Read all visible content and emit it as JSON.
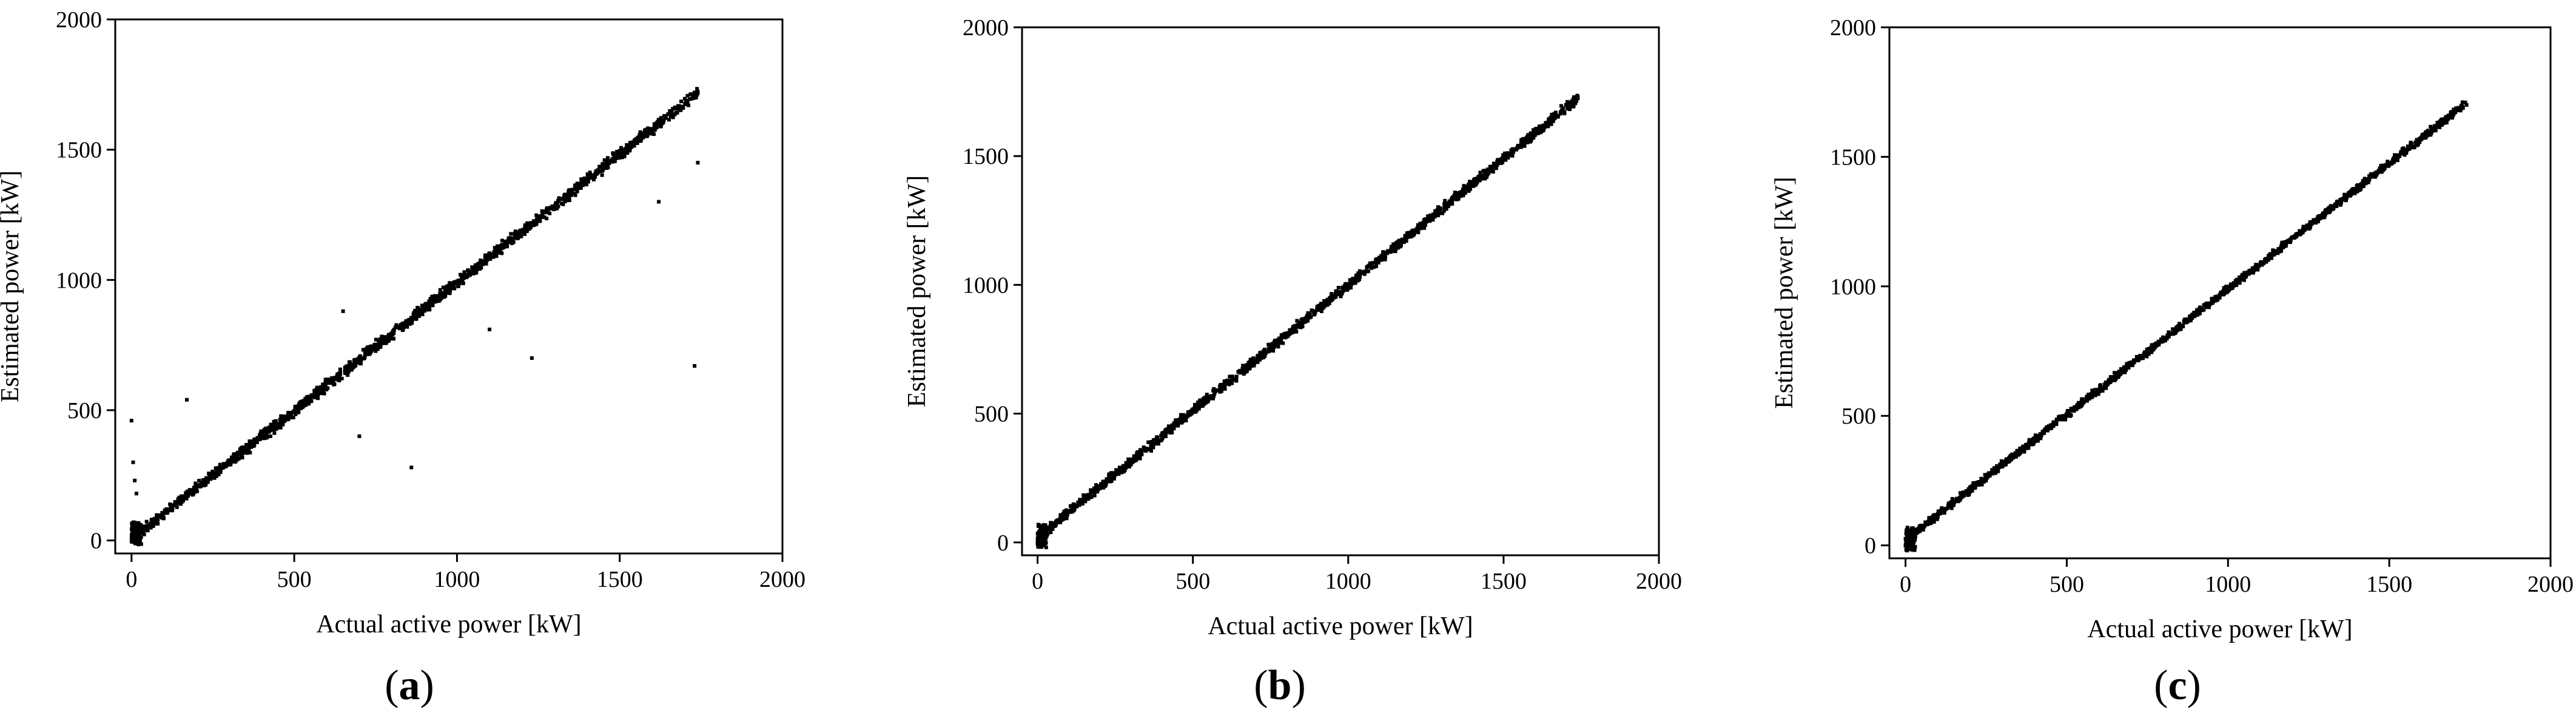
{
  "chart_data": [
    {
      "type": "scatter",
      "panel_label": "a",
      "xlabel": "Actual active power [kW]",
      "ylabel": "Estimated power [kW]",
      "xlim": [
        -50,
        2000
      ],
      "ylim": [
        -50,
        2000
      ],
      "xticks": [
        0,
        500,
        1000,
        1500,
        2000
      ],
      "yticks": [
        0,
        500,
        1000,
        1500,
        2000
      ],
      "x_tick_labels": [
        "0",
        "500",
        "1000",
        "1500",
        "2000"
      ],
      "y_tick_labels": [
        "0",
        "500",
        "1000",
        "1500",
        "2000"
      ],
      "grid": false,
      "point_color": "#000000",
      "trend": {
        "x_range": [
          0,
          1740
        ],
        "slope": 0.985,
        "intercept": 5,
        "spread": 30
      },
      "outliers": [
        {
          "x": 0,
          "y": 460
        },
        {
          "x": 5,
          "y": 300
        },
        {
          "x": 10,
          "y": 230
        },
        {
          "x": 15,
          "y": 180
        },
        {
          "x": 170,
          "y": 540
        },
        {
          "x": 650,
          "y": 880
        },
        {
          "x": 700,
          "y": 400
        },
        {
          "x": 860,
          "y": 280
        },
        {
          "x": 1230,
          "y": 700
        },
        {
          "x": 1730,
          "y": 670
        },
        {
          "x": 1620,
          "y": 1300
        },
        {
          "x": 1740,
          "y": 1450
        },
        {
          "x": 1100,
          "y": 810
        }
      ]
    },
    {
      "type": "scatter",
      "panel_label": "b",
      "xlabel": "Actual active power [kW]",
      "ylabel": "Estimated power [kW]",
      "xlim": [
        -50,
        2000
      ],
      "ylim": [
        -50,
        2000
      ],
      "xticks": [
        0,
        500,
        1000,
        1500,
        2000
      ],
      "yticks": [
        0,
        500,
        1000,
        1500,
        2000
      ],
      "x_tick_labels": [
        "0",
        "500",
        "1000",
        "1500",
        "2000"
      ],
      "y_tick_labels": [
        "0",
        "500",
        "1000",
        "1500",
        "2000"
      ],
      "grid": false,
      "point_color": "#000000",
      "trend": {
        "x_range": [
          0,
          1740
        ],
        "slope": 0.98,
        "intercept": 20,
        "spread": 25
      },
      "outliers": []
    },
    {
      "type": "scatter",
      "panel_label": "c",
      "xlabel": "Actual active power [kW]",
      "ylabel": "Estimated power [kW]",
      "xlim": [
        -50,
        2000
      ],
      "ylim": [
        -50,
        2000
      ],
      "xticks": [
        0,
        500,
        1000,
        1500,
        2000
      ],
      "yticks": [
        0,
        500,
        1000,
        1500,
        2000
      ],
      "x_tick_labels": [
        "0",
        "500",
        "1000",
        "1500",
        "2000"
      ],
      "y_tick_labels": [
        "0",
        "500",
        "1000",
        "1500",
        "2000"
      ],
      "grid": false,
      "point_color": "#000000",
      "trend": {
        "x_range": [
          10,
          1740
        ],
        "slope": 0.97,
        "intercept": 20,
        "spread": 20
      },
      "outliers": []
    }
  ]
}
